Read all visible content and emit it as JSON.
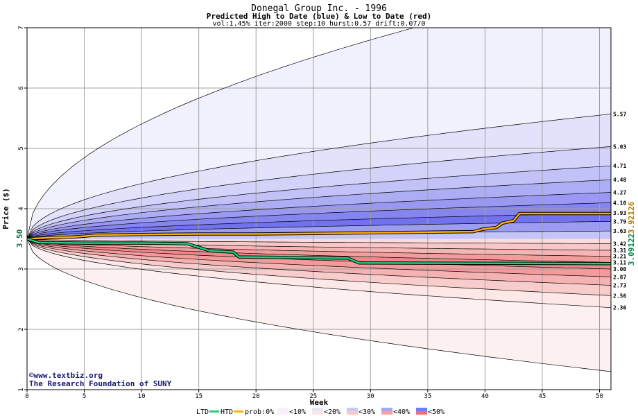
{
  "chart_data": {
    "type": "area",
    "title": "Donegal Group Inc. - 1996",
    "subtitle": "Predicted High to Date (blue) &  Low to Date (red)",
    "params": "vol:1.45% iter:2000 step:10 hurst:0.57 drift:0.07/0",
    "xlabel": "Week",
    "ylabel": "Price ($)",
    "xlim": [
      0,
      51
    ],
    "ylim": [
      1,
      7
    ],
    "x_ticks": [
      0,
      5,
      10,
      15,
      20,
      25,
      30,
      35,
      40,
      45,
      50
    ],
    "y_ticks": [
      1,
      2,
      3,
      4,
      5,
      6,
      7
    ],
    "grid": true,
    "start_price": 3.5,
    "start_label": "3.50",
    "htd_final_label": "3.92126",
    "ltd_final_label": "3.09122",
    "bands": {
      "upper": [
        {
          "end": 7.8,
          "label": ""
        },
        {
          "end": 5.57,
          "label": "5.57"
        },
        {
          "end": 5.03,
          "label": "5.03"
        },
        {
          "end": 4.71,
          "label": "4.71"
        },
        {
          "end": 4.48,
          "label": "4.48"
        },
        {
          "end": 4.27,
          "label": "4.27"
        },
        {
          "end": 4.1,
          "label": "4.10"
        },
        {
          "end": 3.93,
          "label": "3.93"
        },
        {
          "end": 3.79,
          "label": "3.79"
        },
        {
          "end": 3.63,
          "label": "3.63"
        },
        {
          "end": 3.5,
          "label": ""
        }
      ],
      "lower": [
        {
          "end": 3.42,
          "label": "3.42"
        },
        {
          "end": 3.31,
          "label": "3.31"
        },
        {
          "end": 3.21,
          "label": "3.21"
        },
        {
          "end": 3.11,
          "label": "3.11"
        },
        {
          "end": 3.0,
          "label": "3.00"
        },
        {
          "end": 2.87,
          "label": "2.87"
        },
        {
          "end": 2.73,
          "label": "2.73"
        },
        {
          "end": 2.56,
          "label": "2.56"
        },
        {
          "end": 2.36,
          "label": "2.36"
        },
        {
          "end": 1.3,
          "label": ""
        }
      ]
    },
    "series": [
      {
        "name": "HTD",
        "color": "#ffb000",
        "points": [
          [
            0,
            3.5
          ],
          [
            2,
            3.52
          ],
          [
            4,
            3.53
          ],
          [
            6,
            3.56
          ],
          [
            9,
            3.57
          ],
          [
            15,
            3.58
          ],
          [
            20,
            3.58
          ],
          [
            25,
            3.59
          ],
          [
            30,
            3.6
          ],
          [
            35,
            3.61
          ],
          [
            39,
            3.62
          ],
          [
            39.8,
            3.66
          ],
          [
            41,
            3.69
          ],
          [
            41.5,
            3.76
          ],
          [
            42.5,
            3.8
          ],
          [
            43,
            3.92
          ],
          [
            51,
            3.92
          ]
        ]
      },
      {
        "name": "LTD",
        "color": "#20d080",
        "points": [
          [
            0,
            3.5
          ],
          [
            1,
            3.44
          ],
          [
            5,
            3.43
          ],
          [
            10,
            3.43
          ],
          [
            14,
            3.42
          ],
          [
            15,
            3.36
          ],
          [
            16,
            3.3
          ],
          [
            18,
            3.28
          ],
          [
            18.5,
            3.2
          ],
          [
            28,
            3.18
          ],
          [
            29,
            3.1
          ],
          [
            51,
            3.09
          ]
        ]
      }
    ],
    "legend": {
      "items": [
        {
          "label": "LTD",
          "color": "#20d080"
        },
        {
          "label": "HTD",
          "color": "#ffb000"
        }
      ],
      "prob_label": "prob:0%",
      "prob_items": [
        {
          "label": "<10%",
          "top": "#f8f0f8",
          "bottom": "#f8f0f8"
        },
        {
          "label": "<20%",
          "top": "#e4e4fa",
          "bottom": "#fde6e6"
        },
        {
          "label": "<30%",
          "top": "#c8c8fa",
          "bottom": "#fbc8c8"
        },
        {
          "label": "<40%",
          "top": "#a6a6f6",
          "bottom": "#f6a0a0"
        },
        {
          "label": "<50%",
          "top": "#7a7af0",
          "bottom": "#f07070"
        }
      ]
    },
    "credits": [
      "©www.textbiz.org",
      "The Research Foundation of SUNY"
    ],
    "colors": {
      "upper_bands": [
        "#f1f1fd",
        "#e2e2fb",
        "#d3d3fa",
        "#c2c2f8",
        "#adadf6",
        "#9999f3",
        "#8585f0",
        "#7272ee",
        "#9c9cf2",
        "#c4c4f8"
      ],
      "lower_bands": [
        "#fbdcdc",
        "#f8c8c8",
        "#f6b4b4",
        "#f39c9c",
        "#f08888",
        "#f39a9a",
        "#f6b2b2",
        "#f9cccc",
        "#fde8e8"
      ],
      "outer_lower": "#fdf0f0"
    }
  }
}
